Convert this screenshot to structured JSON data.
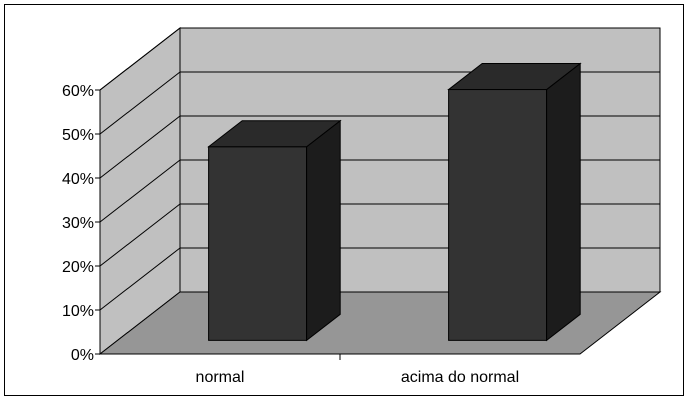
{
  "chart_data": {
    "type": "bar",
    "style": "3d-column",
    "categories": [
      "normal",
      "acima do normal"
    ],
    "values": [
      44,
      57
    ],
    "ylim": [
      0,
      60
    ],
    "yticks": [
      0,
      10,
      20,
      30,
      40,
      50,
      60
    ],
    "ytick_labels": [
      "0%",
      "10%",
      "20%",
      "30%",
      "40%",
      "50%",
      "60%"
    ],
    "title": "",
    "xlabel": "",
    "ylabel": "",
    "grid": true,
    "legend": "none",
    "colors": {
      "bar_front": "#333333",
      "bar_top": "#2a2a2a",
      "bar_side": "#1c1c1c",
      "back_wall": "#c0c0c0",
      "side_wall": "#c0c0c0",
      "floor": "#969696",
      "outline": "#000000"
    }
  }
}
